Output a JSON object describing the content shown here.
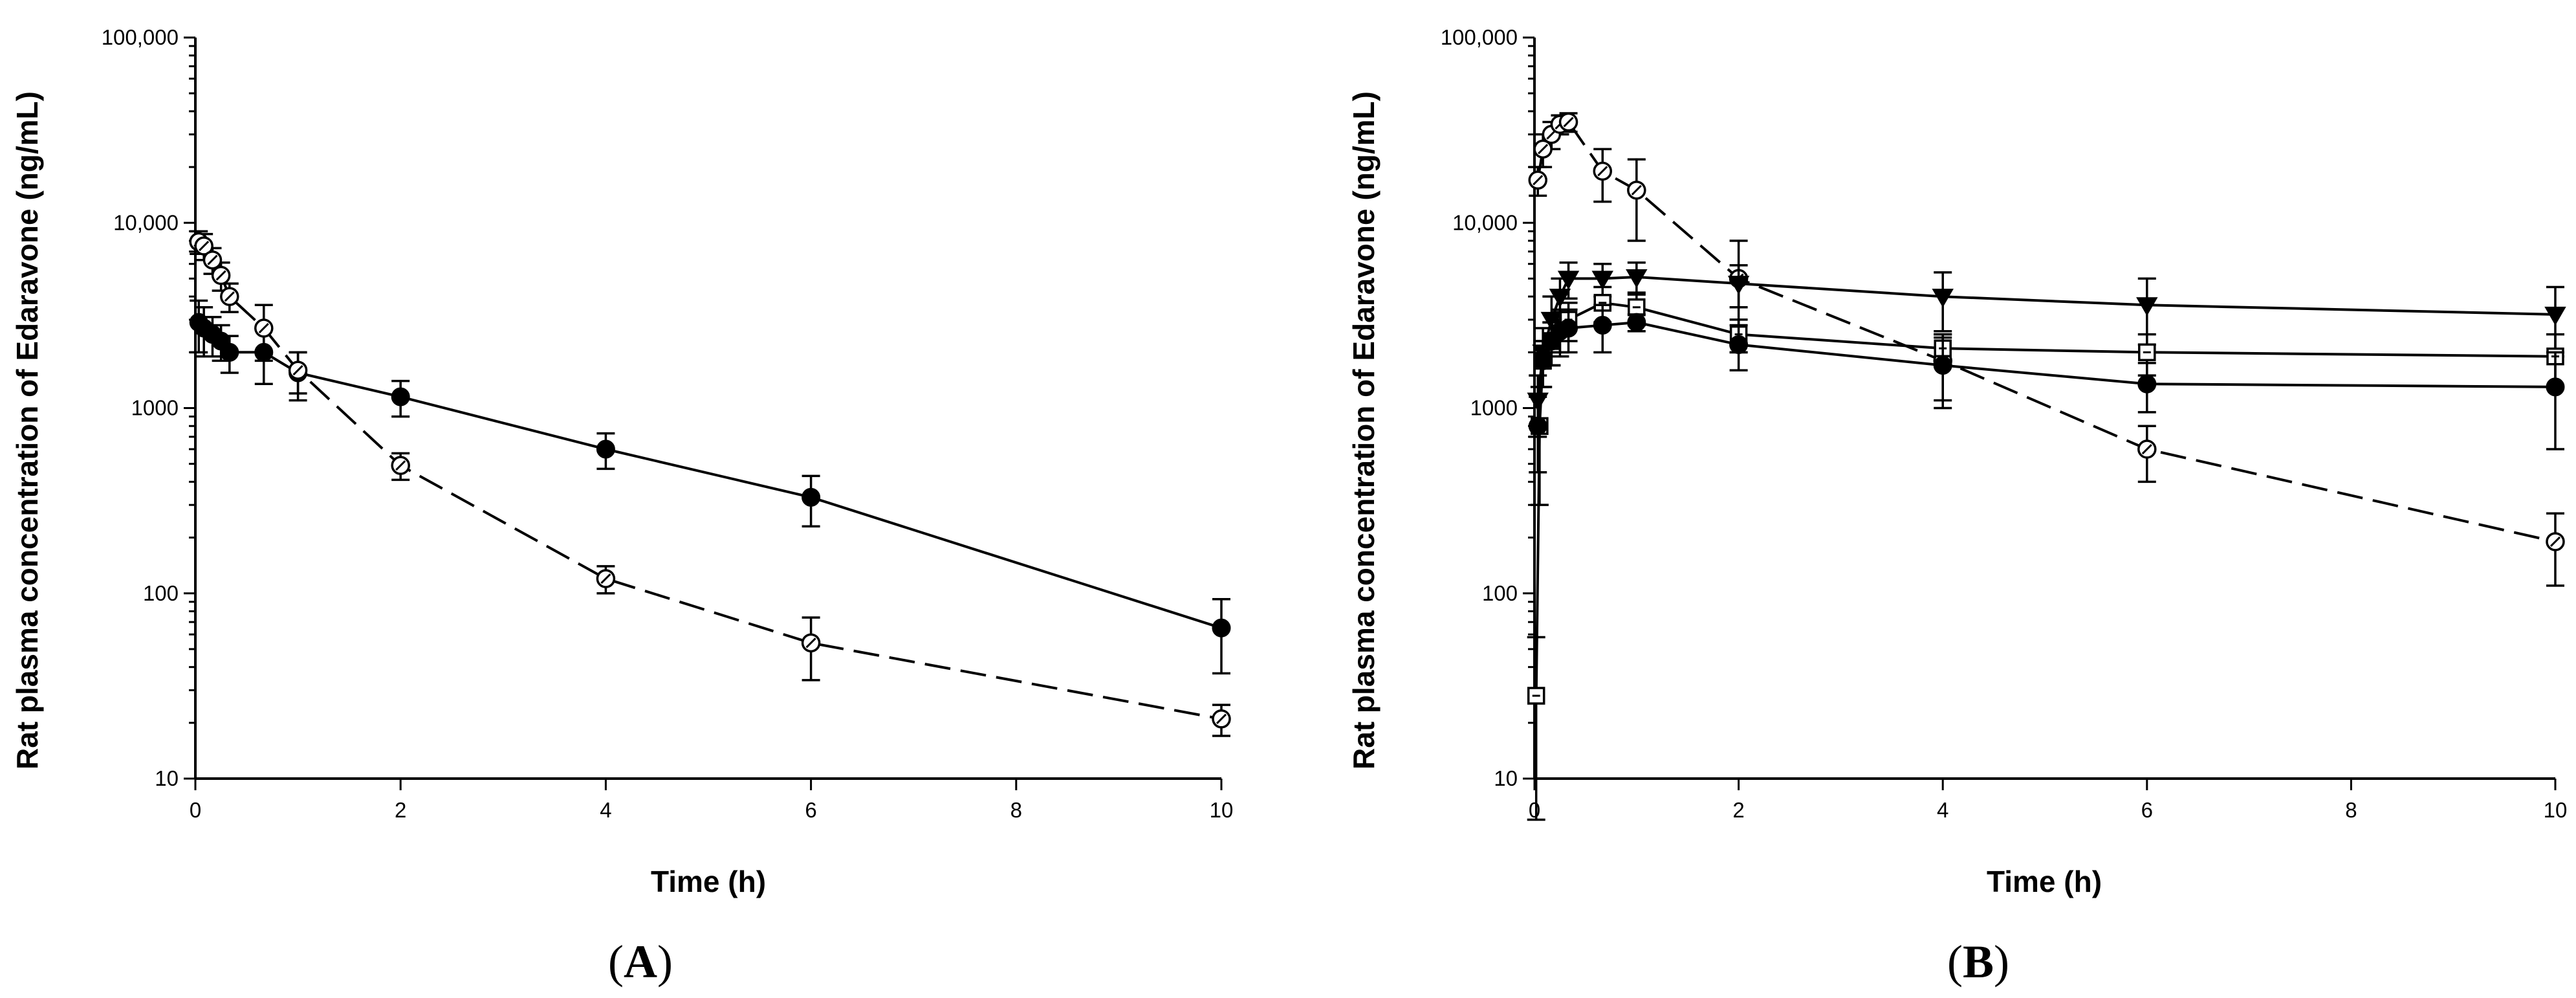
{
  "chart_data": [
    {
      "type": "line",
      "panel_label": "A",
      "xlabel": "Time (h)",
      "ylabel": "Rat plasma concentration of Edaravone (ng/mL)",
      "xlim": [
        0,
        10
      ],
      "ylim": [
        10,
        100000
      ],
      "yscale": "log",
      "xticks": [
        0,
        2,
        4,
        6,
        8,
        10
      ],
      "xtick_labels": [
        "0",
        "2",
        "4",
        "6",
        "8",
        "10"
      ],
      "yticks": [
        10,
        100,
        1000,
        10000,
        100000
      ],
      "ytick_labels": [
        "10",
        "100",
        "1000",
        "10,000",
        "100,000"
      ],
      "series": [
        {
          "name": "filled circle",
          "marker": "filled-circle",
          "line": "solid",
          "x": [
            0.033,
            0.083,
            0.167,
            0.25,
            0.333,
            0.667,
            1,
            2,
            4,
            6,
            10
          ],
          "y": [
            2900,
            2700,
            2500,
            2300,
            2000,
            2000,
            1550,
            1150,
            600,
            330,
            65
          ],
          "err": [
            900,
            800,
            600,
            500,
            450,
            650,
            450,
            250,
            130,
            100,
            28
          ]
        },
        {
          "name": "open circle",
          "marker": "open-circle",
          "line": "dashed",
          "x": [
            0.033,
            0.083,
            0.167,
            0.25,
            0.333,
            0.667,
            1,
            2,
            4,
            6,
            10
          ],
          "y": [
            7900,
            7500,
            6300,
            5200,
            4000,
            2700,
            1600,
            490,
            120,
            54,
            21
          ],
          "err": [
            1100,
            1200,
            1000,
            900,
            700,
            900,
            400,
            80,
            20,
            20,
            4
          ]
        }
      ]
    },
    {
      "type": "line",
      "panel_label": "B",
      "xlabel": "Time (h)",
      "ylabel": "Rat plasma concentration of Edaravone (ng/mL)",
      "xlim": [
        0,
        10
      ],
      "ylim": [
        10,
        100000
      ],
      "yscale": "log",
      "xticks": [
        0,
        2,
        4,
        6,
        8,
        10
      ],
      "xtick_labels": [
        "0",
        "2",
        "4",
        "6",
        "8",
        "10"
      ],
      "yticks": [
        10,
        100,
        1000,
        10000,
        100000
      ],
      "ytick_labels": [
        "10",
        "100",
        "1000",
        "10,000",
        "100,000"
      ],
      "series": [
        {
          "name": "open circle",
          "marker": "open-circle",
          "line": "dashed",
          "x": [
            0.033,
            0.083,
            0.167,
            0.25,
            0.333,
            0.667,
            1,
            2,
            4,
            6,
            10
          ],
          "y": [
            17000,
            25000,
            30000,
            34000,
            35000,
            19000,
            15000,
            5000,
            1800,
            600,
            190
          ],
          "err": [
            3000,
            5000,
            5000,
            4000,
            4000,
            6000,
            7000,
            3000,
            700,
            200,
            80
          ]
        },
        {
          "name": "filled triangle down",
          "marker": "filled-triangle-down",
          "line": "solid",
          "x": [
            0.033,
            0.083,
            0.167,
            0.25,
            0.333,
            0.667,
            1,
            2,
            4,
            6,
            10
          ],
          "y": [
            1100,
            2000,
            3000,
            4000,
            5000,
            5000,
            5100,
            4700,
            4000,
            3600,
            3200
          ],
          "err": [
            400,
            700,
            1000,
            1000,
            1100,
            1000,
            1000,
            1200,
            1400,
            1400,
            1300
          ]
        },
        {
          "name": "open square",
          "marker": "open-square",
          "line": "solid",
          "x": [
            0.017,
            0.05,
            0.083,
            0.167,
            0.25,
            0.333,
            0.667,
            1,
            2,
            4,
            6,
            10
          ],
          "y": [
            28,
            800,
            1800,
            2300,
            2700,
            3000,
            3700,
            3500,
            2500,
            2100,
            2000,
            1900
          ],
          "err": [
            30,
            500,
            500,
            600,
            700,
            700,
            800,
            700,
            500,
            400,
            500,
            600
          ]
        },
        {
          "name": "filled circle",
          "marker": "filled-circle",
          "line": "solid",
          "x": [
            0.033,
            0.083,
            0.167,
            0.25,
            0.333,
            0.667,
            1,
            2,
            4,
            6,
            10
          ],
          "y": [
            800,
            1800,
            2300,
            2600,
            2700,
            2800,
            2900,
            2200,
            1700,
            1350,
            1300
          ],
          "err": [
            350,
            500,
            600,
            700,
            700,
            800,
            300,
            600,
            700,
            400,
            700
          ]
        }
      ]
    }
  ]
}
